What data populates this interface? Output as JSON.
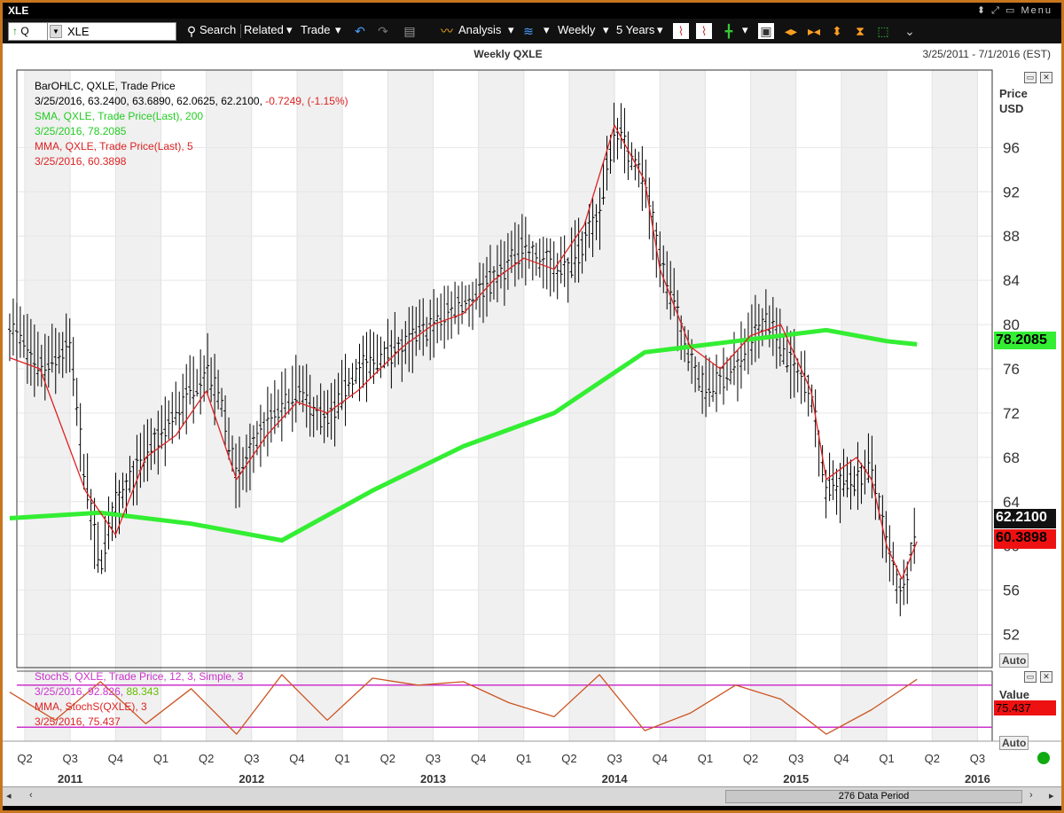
{
  "window": {
    "title": "XLE",
    "menu_label": "Menu"
  },
  "toolbar": {
    "symbol_prefix": "Q",
    "symbol": "XLE",
    "search": "Search",
    "related": "Related",
    "trade": "Trade",
    "analysis": "Analysis",
    "interval": "Weekly",
    "range": "5 Years"
  },
  "chart_header": {
    "title": "Weekly QXLE",
    "date_range": "3/25/2011 - 7/1/2016 (EST)"
  },
  "legend_main": {
    "bar_line1": "BarOHLC, QXLE, Trade Price",
    "bar_line2": "3/25/2016, 63.2400, 63.6890, 62.0625, 62.2100,",
    "bar_change": "-0.7249, (-1.15%)",
    "sma_line1": "SMA, QXLE, Trade Price(Last), 200",
    "sma_line2": "3/25/2016, 78.2085",
    "mma_line1": "MMA, QXLE, Trade Price(Last), 5",
    "mma_line2": "3/25/2016, 60.3898"
  },
  "legend_stoch": {
    "line1": "StochS, QXLE, Trade Price, 12, 3, Simple, 3",
    "line2a": "3/25/2016, 92.826,",
    "line2b": "88.343",
    "line3": "MMA, StochS(QXLE), 3",
    "line4": "3/25/2016, 75.437"
  },
  "axis": {
    "price_label1": "Price",
    "price_label2": "USD",
    "value_label": "Value",
    "auto": "Auto",
    "last_price": "62.2100",
    "last_sma": "78.2085",
    "last_mma": "60.3898",
    "last_stoch": "75.437"
  },
  "footer": {
    "data_period": "276 Data Period"
  },
  "colors": {
    "accent": "#c8761e",
    "price_bar": "#000000",
    "sma": "#33ee33",
    "mma": "#dd2222",
    "stoch": "#cc5522",
    "stoch_levels": "#cc33cc",
    "shade": "#f0f0f0"
  },
  "chart_data": {
    "type": "line",
    "title": "Weekly QXLE",
    "ylabel": "Price USD",
    "ylim": [
      49,
      103
    ],
    "yticks": [
      52,
      56,
      60,
      64,
      68,
      72,
      76,
      80,
      84,
      88,
      92,
      96
    ],
    "grid": true,
    "x_quarter_labels": [
      "Q2",
      "Q3",
      "Q4",
      "Q1",
      "Q2",
      "Q3",
      "Q4",
      "Q1",
      "Q2",
      "Q3",
      "Q4",
      "Q1",
      "Q2",
      "Q3",
      "Q4",
      "Q1",
      "Q2",
      "Q3",
      "Q4",
      "Q1",
      "Q2",
      "Q3"
    ],
    "x_year_labels": [
      "2011",
      "2012",
      "2013",
      "2014",
      "2015",
      "2016"
    ],
    "series": [
      {
        "name": "BarOHLC, QXLE, Trade Price",
        "kind": "ohlc",
        "x": [
          "2011-03",
          "2011-05",
          "2011-07",
          "2011-08",
          "2011-09",
          "2011-10",
          "2011-12",
          "2012-02",
          "2012-04",
          "2012-05",
          "2012-06",
          "2012-08",
          "2012-10",
          "2012-12",
          "2013-02",
          "2013-05",
          "2013-07",
          "2013-09",
          "2013-11",
          "2014-01",
          "2014-02",
          "2014-04",
          "2014-06",
          "2014-07",
          "2014-09",
          "2014-10",
          "2014-12",
          "2015-01",
          "2015-03",
          "2015-05",
          "2015-06",
          "2015-08",
          "2015-09",
          "2015-11",
          "2015-12",
          "2016-01",
          "2016-02",
          "2016-03"
        ],
        "values": [
          80,
          76,
          78,
          66,
          58,
          64,
          68,
          72,
          76,
          73,
          66,
          71,
          74,
          71,
          76,
          78,
          80,
          82,
          84,
          87,
          86,
          85,
          90,
          98,
          93,
          86,
          77,
          74,
          76,
          81,
          78,
          74,
          65,
          66,
          67,
          60,
          55,
          62.21
        ]
      },
      {
        "name": "SMA, QXLE, Trade Price(Last), 200",
        "x": [
          "2011-03",
          "2011-09",
          "2012-03",
          "2012-09",
          "2013-03",
          "2013-09",
          "2014-03",
          "2014-09",
          "2015-03",
          "2015-06",
          "2015-09",
          "2016-01",
          "2016-03"
        ],
        "values": [
          62.5,
          63,
          62,
          60.5,
          65,
          69,
          72,
          77.5,
          78.5,
          79,
          79.5,
          78.5,
          78.2085
        ]
      },
      {
        "name": "MMA, QXLE, Trade Price(Last), 5",
        "x": [
          "2011-03",
          "2011-05",
          "2011-08",
          "2011-10",
          "2011-12",
          "2012-02",
          "2012-04",
          "2012-06",
          "2012-08",
          "2012-10",
          "2012-12",
          "2013-02",
          "2013-05",
          "2013-07",
          "2013-09",
          "2013-11",
          "2014-01",
          "2014-03",
          "2014-05",
          "2014-07",
          "2014-09",
          "2014-10",
          "2014-12",
          "2015-02",
          "2015-04",
          "2015-06",
          "2015-08",
          "2015-09",
          "2015-11",
          "2015-12",
          "2016-01",
          "2016-02",
          "2016-03"
        ],
        "values": [
          77,
          76,
          65,
          61,
          68,
          70,
          74,
          66,
          70,
          73,
          72,
          74,
          78,
          80,
          81,
          84,
          86,
          85,
          89,
          98,
          93,
          85,
          78,
          76,
          79,
          80,
          74,
          66,
          68,
          66,
          60,
          57,
          60.3898
        ]
      },
      {
        "name": "StochS, QXLE, Trade Price, 12, 3, Simple, 3",
        "panel": "lower",
        "x": [
          "2011-03",
          "2011-06",
          "2011-09",
          "2011-12",
          "2012-03",
          "2012-06",
          "2012-09",
          "2012-12",
          "2013-03",
          "2013-06",
          "2013-09",
          "2013-12",
          "2014-03",
          "2014-06",
          "2014-09",
          "2014-12",
          "2015-03",
          "2015-06",
          "2015-09",
          "2015-12",
          "2016-03"
        ],
        "values": [
          70,
          30,
          85,
          25,
          75,
          10,
          95,
          30,
          90,
          80,
          85,
          55,
          35,
          95,
          15,
          40,
          80,
          60,
          10,
          45,
          88.343
        ]
      }
    ]
  }
}
